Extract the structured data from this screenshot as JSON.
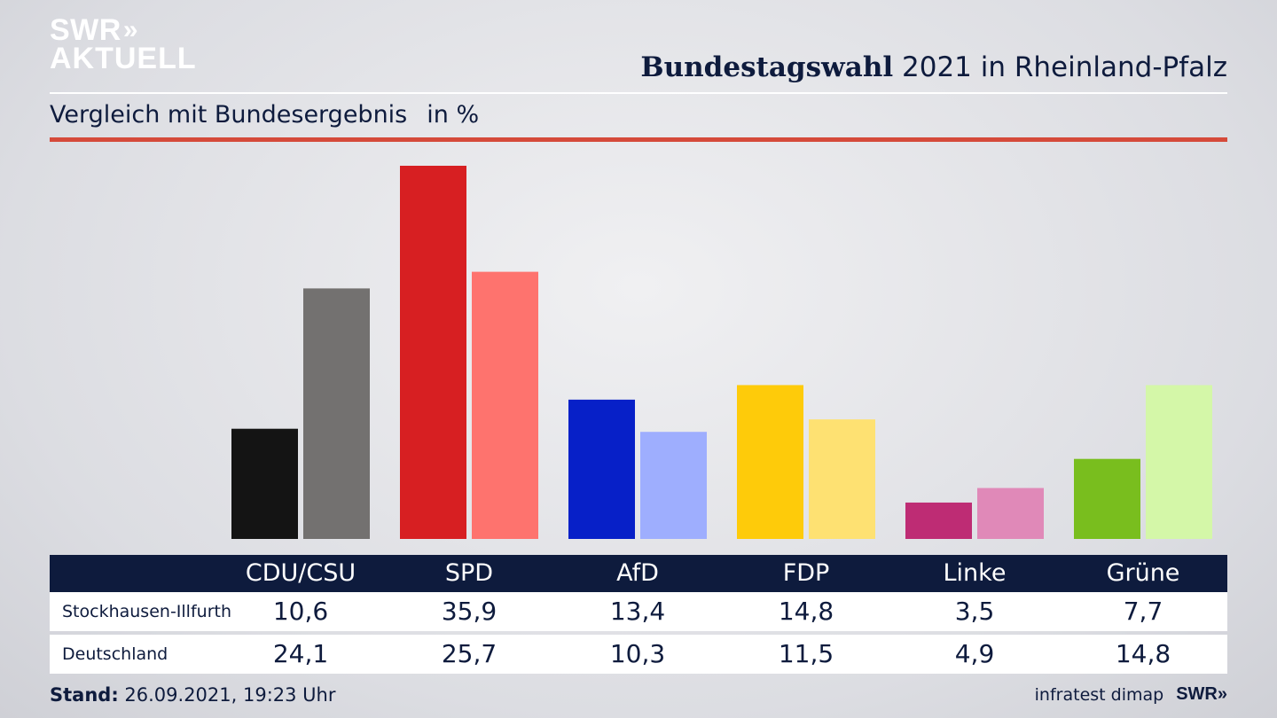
{
  "logo": {
    "line1": "SWR",
    "chevrons": "»",
    "line2": "AKTUELL"
  },
  "header": {
    "title_bold": "Bundestagswahl",
    "title_rest": " 2021 in Rheinland-Pfalz",
    "subtitle": "Vergleich mit Bundesergebnis",
    "unit": "in %"
  },
  "colors": {
    "navy": "#0e1b3d",
    "accent_red": "#d54a3a",
    "CDU/CSU": [
      "#141414",
      "#737170"
    ],
    "SPD": [
      "#d71f22",
      "#fe736e"
    ],
    "AfD": [
      "#0720c8",
      "#9eaefe"
    ],
    "FDP": [
      "#fecb0a",
      "#fee172"
    ],
    "Linke": [
      "#be2c74",
      "#e089b8"
    ],
    "Grüne": [
      "#79be1e",
      "#d4f7a8"
    ]
  },
  "chart_data": {
    "type": "bar",
    "categories": [
      "CDU/CSU",
      "SPD",
      "AfD",
      "FDP",
      "Linke",
      "Grüne"
    ],
    "series": [
      {
        "name": "Stockhausen-Illfurth",
        "values": [
          10.6,
          35.9,
          13.4,
          14.8,
          3.5,
          7.7
        ]
      },
      {
        "name": "Deutschland",
        "values": [
          24.1,
          25.7,
          10.3,
          11.5,
          4.9,
          14.8
        ]
      }
    ],
    "ylim": [
      0,
      35.9
    ]
  },
  "table": {
    "rows": [
      {
        "label": "Stockhausen-Illfurth",
        "values": [
          "10,6",
          "35,9",
          "13,4",
          "14,8",
          "3,5",
          "7,7"
        ]
      },
      {
        "label": "Deutschland",
        "values": [
          "24,1",
          "25,7",
          "10,3",
          "11,5",
          "4,9",
          "14,8"
        ]
      }
    ]
  },
  "footer": {
    "stand_label": "Stand:",
    "stand_value": " 26.09.2021, 19:23 Uhr",
    "source": "infratest dimap",
    "brand": "SWR",
    "brand_chevrons": "»"
  }
}
